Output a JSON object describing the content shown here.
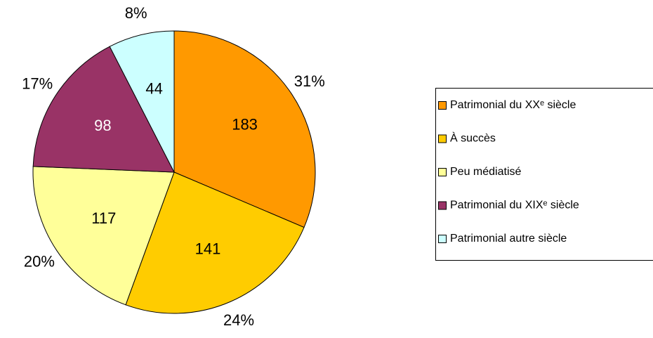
{
  "chart_data": {
    "type": "pie",
    "categories": [
      "Patrimonial du XXᵉ siècle",
      "À succès",
      "Peu médiatisé",
      "Patrimonial du XIXᵉ siècle",
      "Patrimonial autre siècle"
    ],
    "values": [
      183,
      141,
      117,
      98,
      44
    ],
    "percentages": [
      31,
      24,
      20,
      17,
      8
    ],
    "percentage_labels": [
      "31%",
      "24%",
      "20%",
      "17%",
      "8%"
    ],
    "colors": [
      "#ff9900",
      "#ffcc00",
      "#ffff99",
      "#993366",
      "#ccffff"
    ],
    "legend": "right"
  }
}
